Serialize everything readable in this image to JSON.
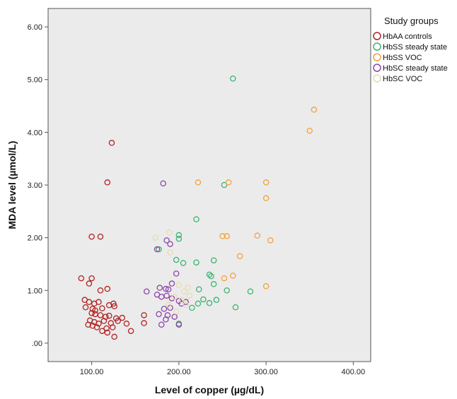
{
  "chart_data": {
    "type": "scatter",
    "xlabel": "Level of copper (µg/dL)",
    "ylabel": "MDA level (µmol/L)",
    "xlim": [
      50,
      420
    ],
    "ylim": [
      -0.35,
      6.35
    ],
    "x_ticks": [
      100,
      200,
      300,
      400
    ],
    "x_tick_labels": [
      "100.00",
      "200.00",
      "300.00",
      "400.00"
    ],
    "y_ticks": [
      0,
      1,
      2,
      3,
      4,
      5,
      6
    ],
    "y_tick_labels": [
      ".00",
      "1.00",
      "2.00",
      "3.00",
      "4.00",
      "5.00",
      "6.00"
    ],
    "grid": false,
    "background": "#ebebeb",
    "legend_title": "Study groups",
    "legend_position": "right",
    "series": [
      {
        "name": "HbAA controls",
        "color": "#b22222",
        "points": [
          [
            123,
            3.8
          ],
          [
            118,
            3.05
          ],
          [
            100,
            2.02
          ],
          [
            110,
            2.02
          ],
          [
            88,
            1.23
          ],
          [
            100,
            1.23
          ],
          [
            97,
            1.13
          ],
          [
            118,
            1.03
          ],
          [
            110,
            1.0
          ],
          [
            92,
            0.82
          ],
          [
            97,
            0.78
          ],
          [
            103,
            0.75
          ],
          [
            108,
            0.78
          ],
          [
            125,
            0.75
          ],
          [
            93,
            0.68
          ],
          [
            101,
            0.65
          ],
          [
            104,
            0.62
          ],
          [
            112,
            0.66
          ],
          [
            120,
            0.72
          ],
          [
            126,
            0.7
          ],
          [
            100,
            0.57
          ],
          [
            104,
            0.55
          ],
          [
            110,
            0.53
          ],
          [
            116,
            0.5
          ],
          [
            120,
            0.52
          ],
          [
            128,
            0.47
          ],
          [
            135,
            0.48
          ],
          [
            160,
            0.53
          ],
          [
            98,
            0.43
          ],
          [
            103,
            0.4
          ],
          [
            108,
            0.37
          ],
          [
            114,
            0.42
          ],
          [
            122,
            0.38
          ],
          [
            130,
            0.42
          ],
          [
            140,
            0.37
          ],
          [
            96,
            0.35
          ],
          [
            101,
            0.33
          ],
          [
            106,
            0.3
          ],
          [
            117,
            0.28
          ],
          [
            124,
            0.3
          ],
          [
            160,
            0.38
          ],
          [
            112,
            0.23
          ],
          [
            118,
            0.2
          ],
          [
            145,
            0.23
          ],
          [
            126,
            0.12
          ]
        ]
      },
      {
        "name": "HbSS steady state",
        "color": "#3cb371",
        "points": [
          [
            262,
            5.02
          ],
          [
            252,
            3.0
          ],
          [
            220,
            2.35
          ],
          [
            177,
            1.78
          ],
          [
            200,
            1.98
          ],
          [
            200,
            2.05
          ],
          [
            197,
            1.58
          ],
          [
            205,
            1.52
          ],
          [
            220,
            1.53
          ],
          [
            240,
            1.57
          ],
          [
            235,
            1.3
          ],
          [
            237,
            1.27
          ],
          [
            223,
            1.02
          ],
          [
            255,
            1.0
          ],
          [
            282,
            0.98
          ],
          [
            240,
            1.12
          ],
          [
            215,
            0.67
          ],
          [
            222,
            0.75
          ],
          [
            228,
            0.83
          ],
          [
            235,
            0.76
          ],
          [
            243,
            0.82
          ],
          [
            265,
            0.68
          ],
          [
            200,
            0.37
          ]
        ]
      },
      {
        "name": "HbSS VOC",
        "color": "#f4a13a",
        "points": [
          [
            355,
            4.43
          ],
          [
            350,
            4.03
          ],
          [
            222,
            3.05
          ],
          [
            257,
            3.05
          ],
          [
            300,
            3.05
          ],
          [
            300,
            2.75
          ],
          [
            250,
            2.03
          ],
          [
            255,
            2.03
          ],
          [
            290,
            2.04
          ],
          [
            305,
            1.95
          ],
          [
            270,
            1.65
          ],
          [
            262,
            1.28
          ],
          [
            252,
            1.23
          ],
          [
            300,
            1.08
          ]
        ]
      },
      {
        "name": "HbSC steady state",
        "color": "#8e44ad",
        "points": [
          [
            182,
            3.03
          ],
          [
            175,
            1.78
          ],
          [
            186,
            1.95
          ],
          [
            190,
            1.88
          ],
          [
            197,
            1.32
          ],
          [
            192,
            1.13
          ],
          [
            178,
            1.05
          ],
          [
            185,
            1.03
          ],
          [
            188,
            1.02
          ],
          [
            163,
            0.98
          ],
          [
            175,
            0.92
          ],
          [
            180,
            0.88
          ],
          [
            186,
            0.9
          ],
          [
            192,
            0.85
          ],
          [
            200,
            0.8
          ],
          [
            203,
            0.75
          ],
          [
            208,
            0.78
          ],
          [
            190,
            0.67
          ],
          [
            183,
            0.65
          ],
          [
            177,
            0.55
          ],
          [
            187,
            0.53
          ],
          [
            195,
            0.5
          ],
          [
            185,
            0.45
          ],
          [
            180,
            0.35
          ],
          [
            200,
            0.35
          ]
        ]
      },
      {
        "name": "HbSC VOC",
        "color": "#e6ddb0",
        "points": [
          [
            189,
            2.1
          ],
          [
            173,
            2.0
          ],
          [
            190,
            1.72
          ],
          [
            200,
            1.1
          ],
          [
            210,
            1.05
          ],
          [
            206,
            0.98
          ],
          [
            212,
            0.9
          ],
          [
            195,
            0.88
          ],
          [
            203,
            0.82
          ],
          [
            208,
            0.73
          ],
          [
            197,
            0.6
          ],
          [
            188,
            0.73
          ]
        ]
      }
    ]
  }
}
